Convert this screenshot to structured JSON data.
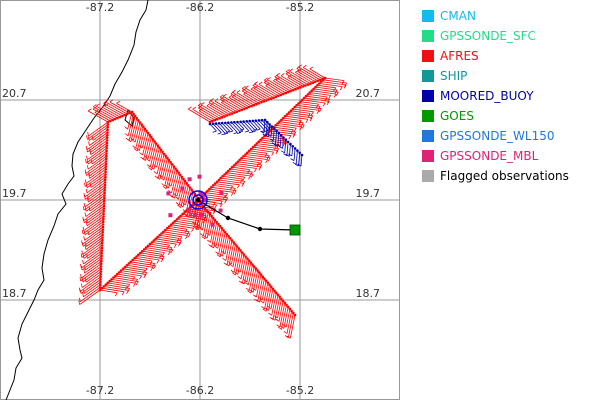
{
  "map": {
    "lon_ticks": [
      "-87.2",
      "-86.2",
      "-85.2"
    ],
    "lat_ticks": [
      "20.7",
      "19.7",
      "18.7"
    ],
    "lon_range": [
      -88.2,
      -84.2
    ],
    "lat_range": [
      17.7,
      21.7
    ],
    "grid": true,
    "colors": {
      "land_outline": "#000000",
      "grid": "#999999",
      "afres": "#ff0000",
      "moored_buoy": "#0000aa",
      "gpssonde_mbl": "#dd2277",
      "center_circle": "#0000ff",
      "track": "#000000",
      "goes": "#009900"
    }
  },
  "legend": [
    {
      "label": "CMAN",
      "color": "#11bbee"
    },
    {
      "label": "GPSSONDE_SFC",
      "color": "#22dd88"
    },
    {
      "label": "AFRES",
      "color": "#ee1111"
    },
    {
      "label": "SHIP",
      "color": "#119999"
    },
    {
      "label": "MOORED_BUOY",
      "color": "#0000aa"
    },
    {
      "label": "GOES",
      "color": "#009900"
    },
    {
      "label": "GPSSONDE_WL150",
      "color": "#2277dd"
    },
    {
      "label": "GPSSONDE_MBL",
      "color": "#dd2277"
    },
    {
      "label": "Flagged observations",
      "color": "#aaaaaa"
    }
  ],
  "observations": {
    "afres_legs": [
      [
        [
          -86.88,
          20.58
        ],
        [
          -86.22,
          19.72
        ]
      ],
      [
        [
          -86.88,
          20.58
        ],
        [
          -87.12,
          20.48
        ],
        [
          -87.2,
          18.8
        ]
      ],
      [
        [
          -87.2,
          18.8
        ],
        [
          -86.22,
          19.7
        ]
      ],
      [
        [
          -86.22,
          19.7
        ],
        [
          -85.25,
          18.55
        ]
      ],
      [
        [
          -86.22,
          19.7
        ],
        [
          -84.95,
          20.92
        ]
      ],
      [
        [
          -84.95,
          20.92
        ],
        [
          -86.1,
          20.48
        ]
      ]
    ],
    "buoy_legs": [
      [
        [
          -86.1,
          20.46
        ],
        [
          -85.55,
          20.5
        ],
        [
          -85.18,
          20.15
        ]
      ]
    ],
    "center_track": [
      [
        -86.22,
        19.7
      ],
      [
        -85.92,
        19.52
      ],
      [
        -85.6,
        19.41
      ],
      [
        -85.25,
        19.4
      ]
    ],
    "center": [
      -86.22,
      19.7
    ],
    "goes_point": [
      -85.25,
      19.4
    ]
  },
  "coastline": [
    [
      -86.72,
      21.7
    ],
    [
      -86.74,
      21.6
    ],
    [
      -86.8,
      21.5
    ],
    [
      -86.84,
      21.38
    ],
    [
      -86.86,
      21.25
    ],
    [
      -86.92,
      21.1
    ],
    [
      -86.98,
      20.98
    ],
    [
      -87.05,
      20.86
    ],
    [
      -87.1,
      20.74
    ],
    [
      -87.18,
      20.62
    ],
    [
      -87.26,
      20.52
    ],
    [
      -87.34,
      20.4
    ],
    [
      -87.42,
      20.28
    ],
    [
      -87.47,
      20.16
    ],
    [
      -87.48,
      20.04
    ],
    [
      -87.46,
      19.94
    ],
    [
      -87.52,
      19.86
    ],
    [
      -87.58,
      19.76
    ],
    [
      -87.54,
      19.66
    ],
    [
      -87.62,
      19.56
    ],
    [
      -87.66,
      19.44
    ],
    [
      -87.72,
      19.3
    ],
    [
      -87.76,
      19.16
    ],
    [
      -87.78,
      19.02
    ],
    [
      -87.76,
      18.9
    ],
    [
      -87.82,
      18.8
    ],
    [
      -87.86,
      18.7
    ],
    [
      -87.92,
      18.58
    ],
    [
      -87.98,
      18.46
    ],
    [
      -88.02,
      18.32
    ],
    [
      -88.0,
      18.2
    ],
    [
      -87.98,
      18.12
    ],
    [
      -88.04,
      18.02
    ],
    [
      -88.06,
      17.9
    ],
    [
      -88.1,
      17.8
    ],
    [
      -88.14,
      17.7
    ]
  ],
  "islands": [
    [
      [
        -86.92,
        20.6
      ],
      [
        -86.86,
        20.52
      ],
      [
        -86.88,
        20.44
      ],
      [
        -86.95,
        20.5
      ],
      [
        -86.92,
        20.6
      ]
    ]
  ]
}
